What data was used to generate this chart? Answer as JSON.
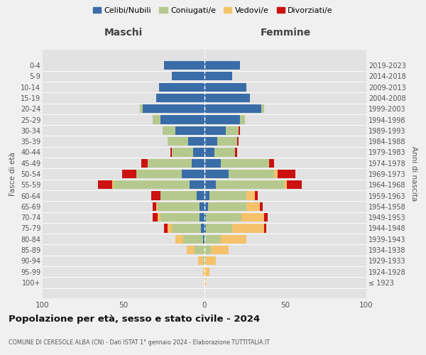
{
  "age_groups": [
    "100+",
    "95-99",
    "90-94",
    "85-89",
    "80-84",
    "75-79",
    "70-74",
    "65-69",
    "60-64",
    "55-59",
    "50-54",
    "45-49",
    "40-44",
    "35-39",
    "30-34",
    "25-29",
    "20-24",
    "15-19",
    "10-14",
    "5-9",
    "0-4"
  ],
  "birth_years": [
    "≤ 1923",
    "1924-1928",
    "1929-1933",
    "1934-1938",
    "1939-1943",
    "1944-1948",
    "1949-1953",
    "1954-1958",
    "1959-1963",
    "1964-1968",
    "1969-1973",
    "1974-1978",
    "1979-1983",
    "1984-1988",
    "1989-1993",
    "1994-1998",
    "1999-2003",
    "2004-2008",
    "2009-2013",
    "2014-2018",
    "2019-2023"
  ],
  "colors": {
    "celibi": "#3a6da8",
    "coniugati": "#b5c98e",
    "vedovi": "#f5c26b",
    "divorziati": "#cc1111",
    "background_fig": "#f0f0f0",
    "background_ax": "#e2e2e2"
  },
  "maschi": {
    "celibi": [
      0,
      0,
      0,
      0,
      1,
      2,
      3,
      3,
      5,
      9,
      14,
      8,
      7,
      10,
      18,
      27,
      38,
      30,
      28,
      20,
      25
    ],
    "coniugati": [
      0,
      0,
      1,
      6,
      12,
      18,
      24,
      26,
      22,
      47,
      28,
      27,
      13,
      13,
      8,
      5,
      2,
      0,
      0,
      0,
      0
    ],
    "vedovi": [
      0,
      1,
      3,
      5,
      5,
      3,
      2,
      1,
      0,
      1,
      0,
      0,
      0,
      0,
      0,
      0,
      0,
      0,
      0,
      0,
      0
    ],
    "divorziati": [
      0,
      0,
      0,
      0,
      0,
      2,
      3,
      2,
      6,
      9,
      9,
      4,
      1,
      0,
      0,
      0,
      0,
      0,
      0,
      0,
      0
    ]
  },
  "femmine": {
    "celibi": [
      0,
      0,
      0,
      0,
      0,
      1,
      1,
      2,
      3,
      7,
      15,
      10,
      6,
      8,
      13,
      22,
      35,
      28,
      26,
      17,
      22
    ],
    "coniugati": [
      0,
      0,
      1,
      4,
      10,
      16,
      22,
      24,
      23,
      42,
      28,
      30,
      13,
      12,
      8,
      3,
      2,
      0,
      0,
      0,
      0
    ],
    "vedovi": [
      1,
      3,
      6,
      11,
      16,
      20,
      14,
      8,
      5,
      2,
      2,
      0,
      0,
      0,
      0,
      0,
      0,
      0,
      0,
      0,
      0
    ],
    "divorziati": [
      0,
      0,
      0,
      0,
      0,
      1,
      2,
      2,
      2,
      9,
      11,
      3,
      1,
      1,
      1,
      0,
      0,
      0,
      0,
      0,
      0
    ]
  },
  "xlim": 100,
  "title": "Popolazione per età, sesso e stato civile - 2024",
  "subtitle": "COMUNE DI CERESOLE ALBA (CN) - Dati ISTAT 1° gennaio 2024 - Elaborazione TUTTITALIA.IT",
  "ylabel_left": "Fasce di età",
  "ylabel_right": "Anni di nascita",
  "legend_labels": [
    "Celibi/Nubili",
    "Coniugati/e",
    "Vedovi/e",
    "Divorziati/e"
  ],
  "maschi_label": "Maschi",
  "femmine_label": "Femmine"
}
